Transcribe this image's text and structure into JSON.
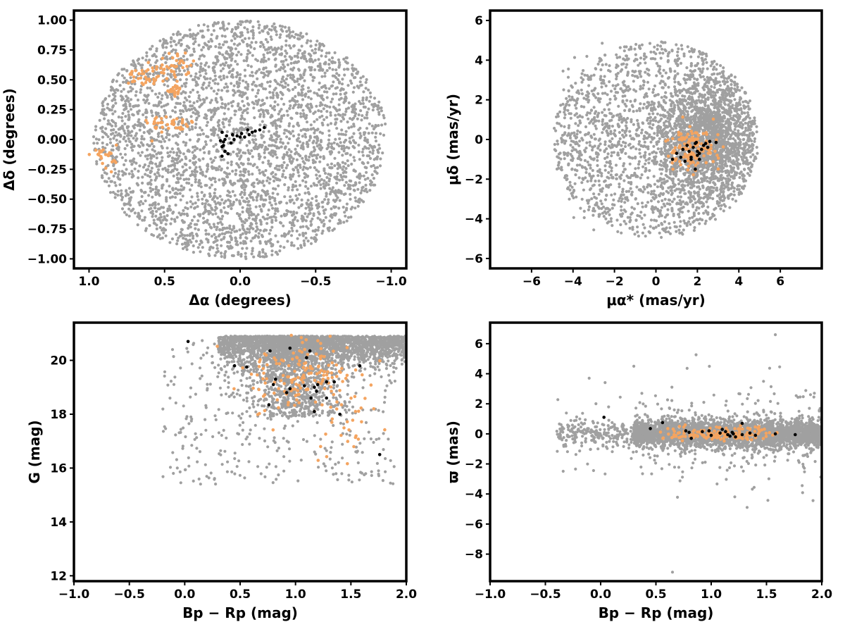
{
  "colors": {
    "field_stars": "#a0a0a0",
    "candidates": "#f4a460",
    "members": "#000000",
    "frame": "#000000"
  },
  "chart_data": [
    {
      "type": "scatter",
      "xlabel": "Δα (degrees)",
      "ylabel": "Δδ (degrees)",
      "xlim": [
        1.1,
        -1.1
      ],
      "ylim": [
        -1.08,
        1.08
      ],
      "x_inverted": true,
      "xticks": [
        1.0,
        0.5,
        0.0,
        -0.5,
        -1.0
      ],
      "xtick_labels": [
        "1.0",
        "0.5",
        "0.0",
        "−0.5",
        "−1.0"
      ],
      "yticks": [
        1.0,
        0.75,
        0.5,
        0.25,
        0.0,
        -0.25,
        -0.5,
        -0.75,
        -1.0
      ],
      "ytick_labels": [
        "1.00",
        "0.75",
        "0.50",
        "0.25",
        "0.00",
        "−0.25",
        "−0.50",
        "−0.75",
        "−1.00"
      ],
      "grid": false,
      "legend": "none",
      "field_distribution": {
        "shape": "disk",
        "center": [
          0.0,
          0.0
        ],
        "radius": [
          0.97,
          1.0
        ],
        "n_points": 3500
      },
      "orange_groups": [
        {
          "center": [
            0.6,
            0.53
          ],
          "spread": [
            0.08,
            0.04
          ],
          "n": 45
        },
        {
          "center": [
            0.42,
            0.64
          ],
          "spread": [
            0.06,
            0.05
          ],
          "n": 30
        },
        {
          "center": [
            0.43,
            0.42
          ],
          "spread": [
            0.03,
            0.05
          ],
          "n": 18
        },
        {
          "center": [
            0.48,
            0.12
          ],
          "spread": [
            0.08,
            0.05
          ],
          "n": 40
        },
        {
          "center": [
            0.9,
            -0.14
          ],
          "spread": [
            0.04,
            0.05
          ],
          "n": 25
        }
      ],
      "black_points": [
        [
          0.12,
          0.06
        ],
        [
          0.09,
          0.03
        ],
        [
          0.05,
          0.04
        ],
        [
          0.02,
          0.03
        ],
        [
          0.0,
          0.02
        ],
        [
          -0.03,
          0.02
        ],
        [
          -0.06,
          0.04
        ],
        [
          -0.08,
          0.06
        ],
        [
          -0.1,
          0.07
        ],
        [
          -0.13,
          0.08
        ],
        [
          -0.16,
          0.1
        ],
        [
          0.1,
          0.0
        ],
        [
          0.11,
          -0.02
        ],
        [
          0.13,
          -0.01
        ],
        [
          0.12,
          -0.06
        ],
        [
          0.1,
          -0.1
        ],
        [
          0.08,
          -0.12
        ],
        [
          0.12,
          -0.14
        ],
        [
          0.06,
          -0.03
        ],
        [
          0.04,
          0.0
        ],
        [
          -0.05,
          0.08
        ],
        [
          -0.01,
          0.05
        ],
        [
          0.11,
          -0.05
        ]
      ]
    },
    {
      "type": "scatter",
      "xlabel": "μα* (mas/yr)",
      "ylabel": "μδ (mas/yr)",
      "xlim": [
        -8.0,
        8.0
      ],
      "ylim": [
        -6.5,
        6.5
      ],
      "xticks": [
        -6,
        -4,
        -2,
        0,
        2,
        4,
        6
      ],
      "xtick_labels": [
        "−6",
        "−4",
        "−2",
        "0",
        "2",
        "4",
        "6"
      ],
      "yticks": [
        6,
        4,
        2,
        0,
        -2,
        -4,
        -6
      ],
      "ytick_labels": [
        "6",
        "4",
        "2",
        "0",
        "−2",
        "−4",
        "−6"
      ],
      "grid": false,
      "legend": "none",
      "field_distribution": {
        "shape": "disk",
        "center": [
          0.0,
          0.0
        ],
        "radius": [
          4.95,
          4.95
        ],
        "n_points": 3500,
        "denser_toward": [
          2.5,
          0.0
        ]
      },
      "orange_groups": [
        {
          "center": [
            1.8,
            -0.5
          ],
          "spread": [
            0.6,
            0.55
          ],
          "n": 130
        }
      ],
      "black_points": [
        [
          1.0,
          -0.7
        ],
        [
          1.3,
          -0.5
        ],
        [
          1.5,
          -0.3
        ],
        [
          1.6,
          -0.6
        ],
        [
          1.7,
          -0.9
        ],
        [
          1.8,
          -0.4
        ],
        [
          1.9,
          -0.2
        ],
        [
          2.0,
          -0.6
        ],
        [
          2.0,
          -0.8
        ],
        [
          2.1,
          -0.7
        ],
        [
          2.2,
          -0.5
        ],
        [
          2.3,
          -0.3
        ],
        [
          2.4,
          -0.2
        ],
        [
          2.6,
          -0.1
        ],
        [
          2.9,
          -0.15
        ],
        [
          1.4,
          -1.1
        ],
        [
          1.9,
          -1.5
        ],
        [
          1.7,
          -1.0
        ],
        [
          2.1,
          -1.0
        ],
        [
          2.5,
          -0.4
        ],
        [
          1.2,
          -0.9
        ],
        [
          0.8,
          -1.0
        ],
        [
          1.95,
          -0.15
        ]
      ]
    },
    {
      "type": "scatter",
      "xlabel": "Bp − Rp (mag)",
      "ylabel": "G (mag)",
      "xlim": [
        -1.0,
        2.0
      ],
      "ylim": [
        11.8,
        21.4
      ],
      "y_inverted": false,
      "xticks": [
        -1.0,
        -0.5,
        0.0,
        0.5,
        1.0,
        1.5,
        2.0
      ],
      "xtick_labels": [
        "−1.0",
        "−0.5",
        "0.0",
        "0.5",
        "1.0",
        "1.5",
        "2.0"
      ],
      "yticks": [
        20,
        18,
        16,
        14,
        12
      ],
      "ytick_labels": [
        "20",
        "18",
        "16",
        "14",
        "12"
      ],
      "grid": false,
      "legend": "none",
      "field_distribution": {
        "shape": "cmd",
        "n_points": 3500
      },
      "orange_groups": [
        {
          "center": [
            1.05,
            19.4
          ],
          "spread": [
            0.22,
            0.75
          ],
          "n": 150
        },
        {
          "center": [
            1.45,
            17.8
          ],
          "spread": [
            0.2,
            0.7
          ],
          "n": 30
        }
      ],
      "black_points": [
        [
          0.03,
          20.7
        ],
        [
          0.45,
          19.8
        ],
        [
          0.56,
          19.75
        ],
        [
          0.77,
          20.35
        ],
        [
          0.95,
          20.45
        ],
        [
          1.13,
          20.35
        ],
        [
          0.82,
          19.3
        ],
        [
          0.8,
          19.1
        ],
        [
          0.92,
          18.8
        ],
        [
          0.95,
          18.95
        ],
        [
          1.08,
          19.05
        ],
        [
          1.14,
          18.6
        ],
        [
          1.17,
          19.0
        ],
        [
          1.2,
          19.1
        ],
        [
          1.19,
          18.85
        ],
        [
          1.28,
          19.2
        ],
        [
          1.35,
          19.2
        ],
        [
          1.28,
          18.6
        ],
        [
          1.17,
          18.1
        ],
        [
          1.58,
          19.8
        ],
        [
          1.4,
          18.0
        ],
        [
          1.76,
          16.5
        ],
        [
          0.76,
          18.35
        ],
        [
          1.1,
          20.1
        ]
      ]
    },
    {
      "type": "scatter",
      "xlabel": "Bp − Rp (mag)",
      "ylabel": "ϖ (mas)",
      "xlim": [
        -1.0,
        2.0
      ],
      "ylim": [
        -9.8,
        7.4
      ],
      "xticks": [
        -1.0,
        -0.5,
        0.0,
        0.5,
        1.0,
        1.5,
        2.0
      ],
      "xtick_labels": [
        "−1.0",
        "−0.5",
        "0.0",
        "0.5",
        "1.0",
        "1.5",
        "2.0"
      ],
      "yticks": [
        6,
        4,
        2,
        0,
        -2,
        -4,
        -6,
        -8
      ],
      "ytick_labels": [
        "6",
        "4",
        "2",
        "0",
        "−2",
        "−4",
        "−6",
        "−8"
      ],
      "grid": false,
      "legend": "none",
      "field_distribution": {
        "shape": "band",
        "center_y": 0.0,
        "n_points": 3500
      },
      "orange_groups": [
        {
          "center": [
            1.1,
            0.0
          ],
          "spread": [
            0.25,
            0.25
          ],
          "n": 150
        }
      ],
      "black_points": [
        [
          0.03,
          1.1
        ],
        [
          0.45,
          0.35
        ],
        [
          0.56,
          0.75
        ],
        [
          0.77,
          0.2
        ],
        [
          0.8,
          0.1
        ],
        [
          0.82,
          -0.3
        ],
        [
          0.92,
          0.15
        ],
        [
          0.98,
          0.2
        ],
        [
          1.0,
          -0.1
        ],
        [
          1.08,
          0.05
        ],
        [
          1.13,
          0.15
        ],
        [
          1.15,
          -0.05
        ],
        [
          1.17,
          -0.15
        ],
        [
          1.19,
          0.1
        ],
        [
          1.2,
          0.0
        ],
        [
          1.28,
          -0.05
        ],
        [
          1.35,
          0.05
        ],
        [
          1.28,
          0.7
        ],
        [
          1.4,
          -0.1
        ],
        [
          1.58,
          0.0
        ],
        [
          1.76,
          -0.05
        ],
        [
          1.22,
          -0.2
        ],
        [
          1.1,
          0.3
        ]
      ]
    }
  ]
}
